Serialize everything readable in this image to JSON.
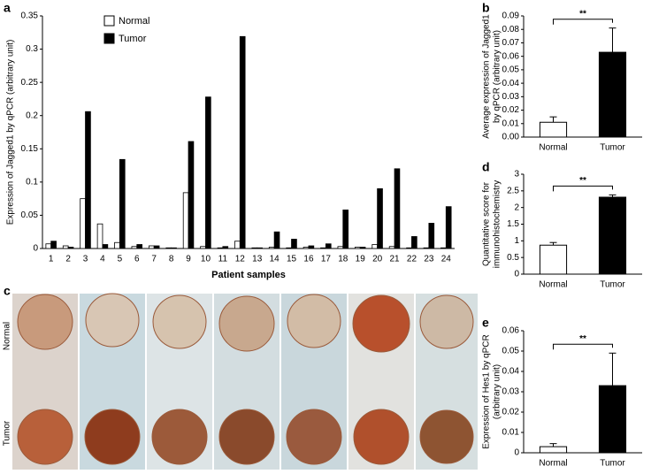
{
  "chart_data": [
    {
      "type": "bar",
      "panel": "a",
      "xlabel": "Patient samples",
      "ylabel": "Expression of Jagged1 by qPCR (arbitrary unit)",
      "categories": [
        "1",
        "2",
        "3",
        "4",
        "5",
        "6",
        "7",
        "8",
        "9",
        "10",
        "11",
        "12",
        "13",
        "14",
        "15",
        "16",
        "17",
        "18",
        "19",
        "20",
        "21",
        "22",
        "23",
        "24"
      ],
      "series": [
        {
          "name": "Normal",
          "color": "#ffffff",
          "values": [
            0.007,
            0.004,
            0.075,
            0.037,
            0.009,
            0.003,
            0.004,
            0.001,
            0.084,
            0.003,
            0.001,
            0.011,
            0.001,
            0.002,
            0.001,
            0.002,
            0.001,
            0.003,
            0.002,
            0.006,
            0.003,
            0.001,
            0.001,
            0.001
          ]
        },
        {
          "name": "Tumor",
          "color": "#000000",
          "values": [
            0.011,
            0.002,
            0.206,
            0.006,
            0.134,
            0.006,
            0.004,
            0.001,
            0.161,
            0.228,
            0.003,
            0.319,
            0.001,
            0.025,
            0.014,
            0.004,
            0.007,
            0.058,
            0.002,
            0.09,
            0.12,
            0.018,
            0.038,
            0.063
          ]
        }
      ],
      "ylim": [
        0,
        0.35
      ],
      "yticks": [
        0,
        0.05,
        0.1,
        0.15,
        0.2,
        0.25,
        0.3,
        0.35
      ],
      "legend": "upper left"
    },
    {
      "type": "bar",
      "panel": "b",
      "ylabel": [
        "Average expression of Jagged1",
        "by qPCR (arbitrary unit)"
      ],
      "categories": [
        "Normal",
        "Tumor"
      ],
      "values": [
        0.011,
        0.063
      ],
      "errors": [
        0.004,
        0.018
      ],
      "colors": [
        "#ffffff",
        "#000000"
      ],
      "annotation": "**",
      "ylim": [
        0,
        0.09
      ],
      "yticks": [
        {
          "value": 0,
          "label": "0.00"
        },
        {
          "value": 0.01,
          "label": "0.01"
        },
        {
          "value": 0.02,
          "label": "0.02"
        },
        {
          "value": 0.03,
          "label": "0.03"
        },
        {
          "value": 0.04,
          "label": "0.04"
        },
        {
          "value": 0.05,
          "label": "0.05"
        },
        {
          "value": 0.06,
          "label": "0.06"
        },
        {
          "value": 0.07,
          "label": "0.07"
        },
        {
          "value": 0.08,
          "label": "0.08"
        },
        {
          "value": 0.09,
          "label": "0.09"
        }
      ]
    },
    {
      "type": "bar",
      "panel": "d",
      "ylabel": [
        "Quantitative score for",
        "immunohistochemistry"
      ],
      "categories": [
        "Normal",
        "Tumor"
      ],
      "values": [
        0.87,
        2.31
      ],
      "errors": [
        0.08,
        0.07
      ],
      "colors": [
        "#ffffff",
        "#000000"
      ],
      "annotation": "**",
      "ylim": [
        0,
        3
      ],
      "yticks": [
        0,
        0.5,
        1,
        1.5,
        2,
        2.5,
        3
      ]
    },
    {
      "type": "bar",
      "panel": "e",
      "ylabel": [
        "Expression of Hes1 by qPCR",
        "(arbitrary unit)"
      ],
      "categories": [
        "Normal",
        "Tumor"
      ],
      "values": [
        0.003,
        0.033
      ],
      "errors": [
        0.0015,
        0.016
      ],
      "colors": [
        "#ffffff",
        "#000000"
      ],
      "annotation": "**",
      "ylim": [
        0,
        0.06
      ],
      "yticks": [
        0,
        0.01,
        0.02,
        0.03,
        0.04,
        0.05,
        0.06
      ]
    }
  ],
  "image_panel": {
    "panel": "c",
    "rows": [
      "Normal",
      "Tumor"
    ]
  }
}
